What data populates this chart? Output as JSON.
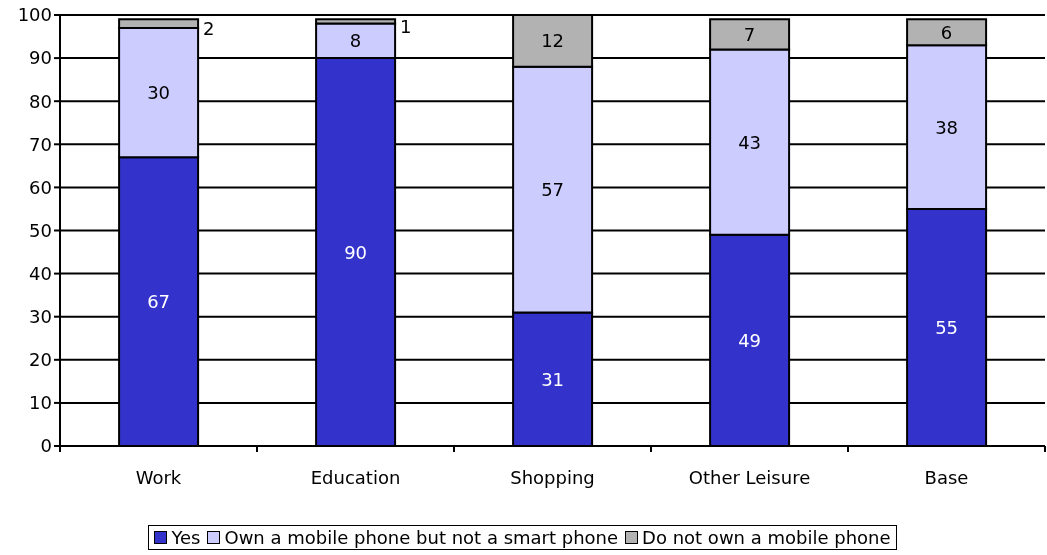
{
  "chart_data": {
    "type": "bar",
    "stacked": true,
    "categories": [
      "Work",
      "Education",
      "Shopping",
      "Other Leisure",
      "Base"
    ],
    "series": [
      {
        "name": "Yes",
        "color": "#3333cc",
        "values": [
          67,
          90,
          31,
          49,
          55
        ]
      },
      {
        "name": "Own a mobile phone but not a smart phone",
        "color": "#ccccff",
        "values": [
          30,
          8,
          57,
          43,
          38
        ]
      },
      {
        "name": "Do not own a mobile phone",
        "color": "#b2b2b2",
        "values": [
          2,
          1,
          12,
          7,
          6
        ]
      }
    ],
    "ylim": [
      0,
      100
    ],
    "yticks": [
      0,
      10,
      20,
      30,
      40,
      50,
      60,
      70,
      80,
      90,
      100
    ],
    "grid": "y",
    "legend": "bottom",
    "data_labels": true
  }
}
